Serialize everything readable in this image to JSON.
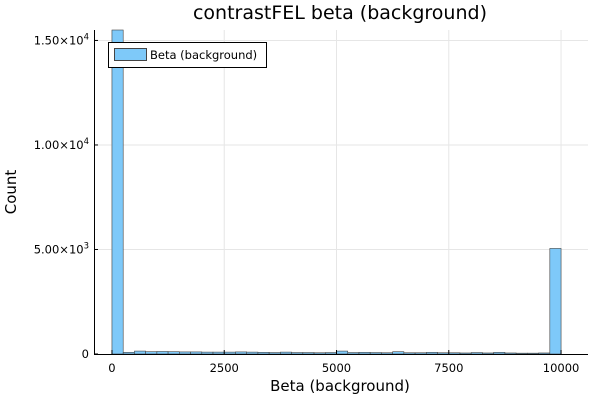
{
  "chart_data": {
    "type": "bar",
    "title": "contrastFEL beta (background)",
    "xlabel": "Beta (background)",
    "ylabel": "Count",
    "xlim": [
      -400,
      10600
    ],
    "ylim": [
      0,
      15500
    ],
    "grid": true,
    "legend": {
      "position": "top-left",
      "entries": [
        "Beta (background)"
      ]
    },
    "bar_color": "#7ec9f9",
    "bar_edge_color": "#444444",
    "x_ticks": [
      {
        "value": 0,
        "label": "0"
      },
      {
        "value": 2500,
        "label": "2500"
      },
      {
        "value": 5000,
        "label": "5000"
      },
      {
        "value": 7500,
        "label": "7500"
      },
      {
        "value": 10000,
        "label": "10000"
      }
    ],
    "y_ticks": [
      {
        "value": 0,
        "label": "0",
        "exp": ""
      },
      {
        "value": 5000,
        "label": "5.00×10",
        "exp": "3"
      },
      {
        "value": 10000,
        "label": "1.00×10",
        "exp": "4"
      },
      {
        "value": 15000,
        "label": "1.50×10",
        "exp": "4"
      }
    ],
    "bin_width": 250,
    "bins": [
      {
        "x0": 0,
        "x1": 250,
        "count": 15500
      },
      {
        "x0": 250,
        "x1": 500,
        "count": 80
      },
      {
        "x0": 500,
        "x1": 750,
        "count": 140
      },
      {
        "x0": 750,
        "x1": 1000,
        "count": 110
      },
      {
        "x0": 1000,
        "x1": 1250,
        "count": 120
      },
      {
        "x0": 1250,
        "x1": 1500,
        "count": 110
      },
      {
        "x0": 1500,
        "x1": 1750,
        "count": 100
      },
      {
        "x0": 1750,
        "x1": 2000,
        "count": 100
      },
      {
        "x0": 2000,
        "x1": 2250,
        "count": 90
      },
      {
        "x0": 2250,
        "x1": 2500,
        "count": 90
      },
      {
        "x0": 2500,
        "x1": 2750,
        "count": 90
      },
      {
        "x0": 2750,
        "x1": 3000,
        "count": 100
      },
      {
        "x0": 3000,
        "x1": 3250,
        "count": 90
      },
      {
        "x0": 3250,
        "x1": 3500,
        "count": 80
      },
      {
        "x0": 3500,
        "x1": 3750,
        "count": 70
      },
      {
        "x0": 3750,
        "x1": 4000,
        "count": 90
      },
      {
        "x0": 4000,
        "x1": 4250,
        "count": 70
      },
      {
        "x0": 4250,
        "x1": 4500,
        "count": 70
      },
      {
        "x0": 4500,
        "x1": 4750,
        "count": 60
      },
      {
        "x0": 4750,
        "x1": 5000,
        "count": 70
      },
      {
        "x0": 5000,
        "x1": 5250,
        "count": 140
      },
      {
        "x0": 5250,
        "x1": 5500,
        "count": 70
      },
      {
        "x0": 5500,
        "x1": 5750,
        "count": 80
      },
      {
        "x0": 5750,
        "x1": 6000,
        "count": 70
      },
      {
        "x0": 6000,
        "x1": 6250,
        "count": 60
      },
      {
        "x0": 6250,
        "x1": 6500,
        "count": 110
      },
      {
        "x0": 6500,
        "x1": 6750,
        "count": 60
      },
      {
        "x0": 6750,
        "x1": 7000,
        "count": 60
      },
      {
        "x0": 7000,
        "x1": 7250,
        "count": 80
      },
      {
        "x0": 7250,
        "x1": 7500,
        "count": 60
      },
      {
        "x0": 7500,
        "x1": 7750,
        "count": 60
      },
      {
        "x0": 7750,
        "x1": 8000,
        "count": 50
      },
      {
        "x0": 8000,
        "x1": 8250,
        "count": 70
      },
      {
        "x0": 8250,
        "x1": 8500,
        "count": 50
      },
      {
        "x0": 8500,
        "x1": 8750,
        "count": 80
      },
      {
        "x0": 8750,
        "x1": 9000,
        "count": 50
      },
      {
        "x0": 9000,
        "x1": 9250,
        "count": 40
      },
      {
        "x0": 9250,
        "x1": 9500,
        "count": 40
      },
      {
        "x0": 9500,
        "x1": 9750,
        "count": 50
      },
      {
        "x0": 9750,
        "x1": 10000,
        "count": 5050
      }
    ]
  }
}
